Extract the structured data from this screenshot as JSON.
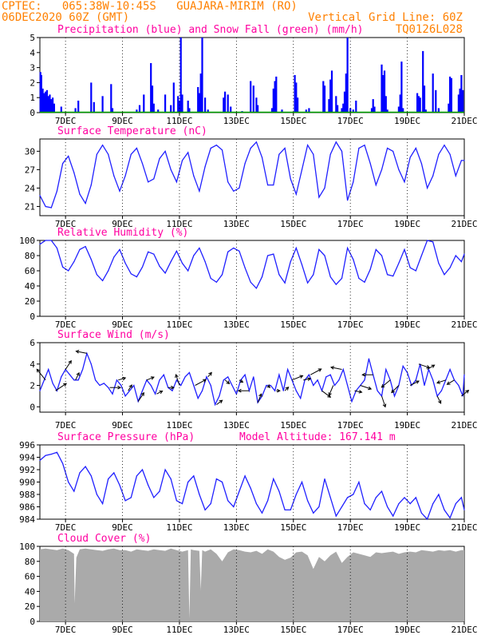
{
  "header": {
    "line1_left": "CPTEC:   065:38W-10:45S   GUAJARA-MIRIM (RO)",
    "line2_left": "06DEC2020 60Z (GMT)",
    "line2_right": "Vertical Grid Line: 60Z",
    "line3_right": "TQ0126L028"
  },
  "colors": {
    "header_text": "#ff8000",
    "panel_title": "#ff00a0",
    "precipitation": "#0000ff",
    "snowfall": "#00a000",
    "series_line": "#2020ff",
    "cloud_fill": "#aaaaaa",
    "grid": "#000000"
  },
  "x_axis": {
    "ticks": [
      "7DEC",
      "9DEC",
      "11DEC",
      "13DEC",
      "15DEC",
      "17DEC",
      "19DEC",
      "21DEC"
    ],
    "tick_days": [
      7,
      9,
      11,
      13,
      15,
      17,
      19,
      21
    ],
    "day_min": 6.1,
    "day_max": 21.0
  },
  "chart_data": [
    {
      "type": "bar",
      "title": "Precipitation (blue) and Snow Fall (green) (mm/h)",
      "ylim": [
        0,
        5
      ],
      "yticks": [
        "0",
        "1",
        "2",
        "3",
        "4",
        "5"
      ],
      "day": [
        6.12,
        6.15,
        6.2,
        6.25,
        6.3,
        6.35,
        6.4,
        6.45,
        6.5,
        6.55,
        6.6,
        6.85,
        7.35,
        7.45,
        7.9,
        8.0,
        8.3,
        8.6,
        8.65,
        9.5,
        9.6,
        9.75,
        10.0,
        10.05,
        10.1,
        10.25,
        10.5,
        10.7,
        10.8,
        10.95,
        11.0,
        11.05,
        11.1,
        11.3,
        11.35,
        11.65,
        11.7,
        11.75,
        11.8,
        11.9,
        12.0,
        12.55,
        12.6,
        12.7,
        12.8,
        13.2,
        13.5,
        13.6,
        13.7,
        13.75,
        14.25,
        14.3,
        14.35,
        14.4,
        14.6,
        15.05,
        15.1,
        15.15,
        15.45,
        15.55,
        16.05,
        16.1,
        16.25,
        16.3,
        16.35,
        16.5,
        16.55,
        16.7,
        16.75,
        16.8,
        16.85,
        16.9,
        17.0,
        17.1,
        17.2,
        17.75,
        17.8,
        17.85,
        18.1,
        18.15,
        18.2,
        18.25,
        18.3,
        18.7,
        18.75,
        18.8,
        18.85,
        19.35,
        19.4,
        19.45,
        19.55,
        19.6,
        19.65,
        19.9,
        20.0,
        20.1,
        20.45,
        20.5,
        20.55,
        20.8,
        20.85,
        20.9,
        20.95
      ],
      "values": [
        2.7,
        2.5,
        1.6,
        1.3,
        1.4,
        1.5,
        1.1,
        1.2,
        0.9,
        1.0,
        0.6,
        0.4,
        0.3,
        0.8,
        2.0,
        0.7,
        1.1,
        1.9,
        0.3,
        0.2,
        0.5,
        1.2,
        3.3,
        1.8,
        0.6,
        0.2,
        1.2,
        0.5,
        2.0,
        1.1,
        0.8,
        5.0,
        1.2,
        0.8,
        0.3,
        1.7,
        1.3,
        2.6,
        5.0,
        1.0,
        0.2,
        1.0,
        1.4,
        1.2,
        0.4,
        0.1,
        2.1,
        1.8,
        1.0,
        0.5,
        0.3,
        1.6,
        2.1,
        2.4,
        0.2,
        2.5,
        2.0,
        1.0,
        0.2,
        0.3,
        2.1,
        1.8,
        0.9,
        2.2,
        2.8,
        1.1,
        0.5,
        0.3,
        0.6,
        1.4,
        2.6,
        5.0,
        0.3,
        0.2,
        0.8,
        0.3,
        0.9,
        0.4,
        3.2,
        2.5,
        2.8,
        1.1,
        0.2,
        0.4,
        1.2,
        3.4,
        0.3,
        1.3,
        1.1,
        1.0,
        4.1,
        1.8,
        0.2,
        2.6,
        1.5,
        0.3,
        0.6,
        2.4,
        2.3,
        1.2,
        1.6,
        2.5,
        1.5
      ],
      "snow_values": 0
    },
    {
      "type": "line",
      "title": "Surface Temperature (nC)",
      "ylim": [
        19.5,
        32
      ],
      "yticks": [
        21,
        24,
        27,
        30
      ],
      "day": [
        6.1,
        6.3,
        6.5,
        6.7,
        6.9,
        7.1,
        7.3,
        7.5,
        7.7,
        7.9,
        8.1,
        8.3,
        8.5,
        8.7,
        8.9,
        9.1,
        9.3,
        9.5,
        9.7,
        9.9,
        10.1,
        10.3,
        10.5,
        10.7,
        10.9,
        11.1,
        11.3,
        11.5,
        11.7,
        11.9,
        12.1,
        12.3,
        12.5,
        12.7,
        12.9,
        13.1,
        13.3,
        13.5,
        13.7,
        13.9,
        14.1,
        14.3,
        14.5,
        14.7,
        14.9,
        15.1,
        15.3,
        15.5,
        15.7,
        15.9,
        16.1,
        16.3,
        16.5,
        16.7,
        16.9,
        17.1,
        17.3,
        17.5,
        17.7,
        17.9,
        18.1,
        18.3,
        18.5,
        18.7,
        18.9,
        19.1,
        19.3,
        19.5,
        19.7,
        19.9,
        20.1,
        20.3,
        20.5,
        20.7,
        20.9,
        21.0
      ],
      "values": [
        22.8,
        21.0,
        20.8,
        23.5,
        28.0,
        29.2,
        26.5,
        23.0,
        21.5,
        24.5,
        29.5,
        31.0,
        29.5,
        26.0,
        23.5,
        26.0,
        29.5,
        30.5,
        28.0,
        25.0,
        25.5,
        28.8,
        30.0,
        27.0,
        25.0,
        28.5,
        29.8,
        26.0,
        23.5,
        27.5,
        30.5,
        31.0,
        30.2,
        25.0,
        23.5,
        24.0,
        28.0,
        30.5,
        31.5,
        29.0,
        24.5,
        24.5,
        29.5,
        30.5,
        25.5,
        23.0,
        27.0,
        31.0,
        29.5,
        22.5,
        24.0,
        29.5,
        31.5,
        30.0,
        22.0,
        25.0,
        30.5,
        31.0,
        28.0,
        24.5,
        27.0,
        30.5,
        30.0,
        27.0,
        25.0,
        29.0,
        30.5,
        28.0,
        24.0,
        26.0,
        29.5,
        31.0,
        29.5,
        26.0,
        28.5,
        28.5
      ]
    },
    {
      "type": "line",
      "title": "Relative Humidity (%)",
      "ylim": [
        0,
        100
      ],
      "yticks": [
        0,
        20,
        40,
        60,
        80,
        100
      ],
      "day": [
        6.1,
        6.3,
        6.5,
        6.7,
        6.9,
        7.1,
        7.3,
        7.5,
        7.7,
        7.9,
        8.1,
        8.3,
        8.5,
        8.7,
        8.9,
        9.1,
        9.3,
        9.5,
        9.7,
        9.9,
        10.1,
        10.3,
        10.5,
        10.7,
        10.9,
        11.1,
        11.3,
        11.5,
        11.7,
        11.9,
        12.1,
        12.3,
        12.5,
        12.7,
        12.9,
        13.1,
        13.3,
        13.5,
        13.7,
        13.9,
        14.1,
        14.3,
        14.5,
        14.7,
        14.9,
        15.1,
        15.3,
        15.5,
        15.7,
        15.9,
        16.1,
        16.3,
        16.5,
        16.7,
        16.9,
        17.1,
        17.3,
        17.5,
        17.7,
        17.9,
        18.1,
        18.3,
        18.5,
        18.7,
        18.9,
        19.1,
        19.3,
        19.5,
        19.7,
        19.9,
        20.1,
        20.3,
        20.5,
        20.7,
        20.9,
        21.0
      ],
      "values": [
        95,
        100,
        100,
        90,
        65,
        60,
        72,
        88,
        92,
        75,
        55,
        47,
        60,
        78,
        88,
        70,
        56,
        52,
        65,
        85,
        82,
        66,
        57,
        72,
        86,
        70,
        60,
        80,
        90,
        72,
        50,
        45,
        55,
        85,
        90,
        86,
        64,
        45,
        37,
        52,
        80,
        82,
        55,
        44,
        72,
        90,
        68,
        44,
        55,
        88,
        80,
        52,
        42,
        50,
        90,
        75,
        50,
        45,
        62,
        88,
        80,
        55,
        53,
        70,
        88,
        64,
        60,
        80,
        100,
        98,
        70,
        55,
        64,
        80,
        72,
        82
      ]
    },
    {
      "type": "line",
      "title": "Surface Wind (m/s)",
      "ylim": [
        -0.5,
        6
      ],
      "yticks": [
        0,
        2,
        4,
        6
      ],
      "day": [
        6.1,
        6.25,
        6.4,
        6.55,
        6.7,
        6.85,
        7.0,
        7.15,
        7.3,
        7.45,
        7.6,
        7.75,
        7.9,
        8.05,
        8.2,
        8.35,
        8.5,
        8.65,
        8.8,
        8.95,
        9.1,
        9.25,
        9.4,
        9.55,
        9.7,
        9.85,
        10.0,
        10.15,
        10.3,
        10.45,
        10.6,
        10.75,
        10.9,
        11.05,
        11.2,
        11.35,
        11.5,
        11.65,
        11.8,
        11.95,
        12.1,
        12.25,
        12.4,
        12.55,
        12.7,
        12.85,
        13.0,
        13.15,
        13.3,
        13.45,
        13.6,
        13.75,
        13.9,
        14.05,
        14.2,
        14.35,
        14.5,
        14.65,
        14.8,
        14.95,
        15.1,
        15.25,
        15.4,
        15.55,
        15.7,
        15.85,
        16.0,
        16.15,
        16.3,
        16.45,
        16.6,
        16.75,
        16.9,
        17.05,
        17.2,
        17.35,
        17.5,
        17.65,
        17.8,
        17.95,
        18.1,
        18.25,
        18.4,
        18.55,
        18.7,
        18.85,
        19.0,
        19.15,
        19.3,
        19.45,
        19.6,
        19.75,
        19.9,
        20.05,
        20.2,
        20.35,
        20.5,
        20.65,
        20.8,
        20.95,
        21.0
      ],
      "values": [
        1.5,
        2.5,
        3.5,
        2.2,
        1.5,
        2.8,
        3.5,
        3.0,
        2.5,
        2.5,
        3.5,
        5.0,
        4.0,
        2.5,
        2.0,
        2.2,
        1.8,
        1.2,
        2.5,
        2.0,
        1.0,
        1.5,
        2.0,
        0.5,
        1.5,
        2.5,
        2.0,
        1.2,
        2.5,
        3.0,
        1.8,
        1.5,
        2.5,
        2.0,
        2.8,
        3.2,
        2.0,
        0.8,
        1.5,
        2.8,
        2.0,
        0.2,
        1.0,
        2.5,
        2.8,
        2.0,
        1.2,
        2.5,
        3.0,
        1.5,
        2.8,
        0.4,
        1.0,
        2.0,
        2.0,
        1.5,
        3.0,
        1.5,
        3.5,
        2.5,
        1.5,
        0.8,
        2.5,
        3.0,
        2.0,
        2.5,
        1.5,
        2.8,
        3.0,
        2.0,
        2.5,
        3.5,
        2.0,
        0.5,
        1.5,
        2.0,
        2.5,
        4.5,
        3.0,
        1.5,
        1.0,
        3.5,
        2.5,
        1.0,
        2.0,
        3.8,
        3.2,
        2.0,
        2.5,
        4.0,
        2.0,
        3.5,
        2.5,
        1.0,
        1.5,
        2.5,
        3.5,
        2.5,
        2.0,
        1.0,
        3.0
      ],
      "arrows_day": [
        6.3,
        6.65,
        7.0,
        7.35,
        7.75,
        8.55,
        8.85,
        9.2,
        9.55,
        9.85,
        10.2,
        10.6,
        11.0,
        11.55,
        12.0,
        12.3,
        12.6,
        13.1,
        13.45,
        13.75,
        14.1,
        14.4,
        14.7,
        14.95,
        15.35,
        15.6,
        16.0,
        16.4,
        16.7,
        17.15,
        17.35,
        17.8,
        18.1,
        18.4,
        18.7,
        19.1,
        19.4,
        19.7,
        20.05,
        20.35,
        20.65,
        20.9
      ],
      "arrows_u": [
        -1.2,
        1.5,
        0.8,
        0.5,
        -1.5,
        1.5,
        1.0,
        0.5,
        0.8,
        1.0,
        0.8,
        0.8,
        -0.5,
        1.5,
        0.5,
        0.8,
        0.6,
        0.5,
        -1.5,
        0.5,
        0.3,
        0.5,
        0.5,
        1.5,
        1.0,
        1.5,
        1.2,
        -0.6,
        -1.5,
        1.0,
        1.5,
        -1.5,
        0.5,
        -1.2,
        -1.0,
        1.2,
        1.5,
        1.0,
        0.5,
        -1.2,
        -1.0,
        1.0
      ],
      "arrows_v": [
        1.5,
        1.0,
        1.2,
        1.0,
        0.3,
        0.0,
        0.3,
        0.8,
        1.2,
        0.4,
        0.4,
        0.0,
        1.5,
        0.8,
        0.6,
        0.6,
        -0.5,
        -0.3,
        0.0,
        1.2,
        -0.3,
        0.0,
        0.5,
        0.6,
        0.2,
        0.8,
        -0.9,
        -1.4,
        0.3,
        -0.2,
        -0.5,
        0.0,
        -1.5,
        -1.0,
        -1.0,
        0.6,
        -0.5,
        0.6,
        -1.0,
        -0.4,
        -0.6,
        0.8
      ]
    },
    {
      "type": "line",
      "title": "Surface Pressure (hPa)",
      "annotation": "Model Altitude: 167.141 m",
      "ylim": [
        984,
        996
      ],
      "yticks": [
        984,
        986,
        988,
        990,
        992,
        994,
        996
      ],
      "day": [
        6.1,
        6.3,
        6.5,
        6.7,
        6.9,
        7.1,
        7.3,
        7.5,
        7.7,
        7.9,
        8.1,
        8.3,
        8.5,
        8.7,
        8.9,
        9.1,
        9.3,
        9.5,
        9.7,
        9.9,
        10.1,
        10.3,
        10.5,
        10.7,
        10.9,
        11.1,
        11.3,
        11.5,
        11.7,
        11.9,
        12.1,
        12.3,
        12.5,
        12.7,
        12.9,
        13.1,
        13.3,
        13.5,
        13.7,
        13.9,
        14.1,
        14.3,
        14.5,
        14.7,
        14.9,
        15.1,
        15.3,
        15.5,
        15.7,
        15.9,
        16.1,
        16.3,
        16.5,
        16.7,
        16.9,
        17.1,
        17.3,
        17.5,
        17.7,
        17.9,
        18.1,
        18.3,
        18.5,
        18.7,
        18.9,
        19.1,
        19.3,
        19.5,
        19.7,
        19.9,
        20.1,
        20.3,
        20.5,
        20.7,
        20.9,
        21.0
      ],
      "values": [
        993.5,
        994.3,
        994.5,
        994.8,
        993.0,
        990.0,
        988.5,
        991.5,
        992.5,
        991.0,
        988.0,
        986.5,
        990.5,
        991.5,
        989.5,
        987.0,
        987.5,
        991.0,
        992.0,
        989.5,
        987.5,
        988.5,
        992.0,
        990.5,
        987.0,
        986.5,
        990.0,
        991.0,
        988.0,
        985.5,
        986.5,
        990.5,
        990.0,
        987.0,
        986.0,
        988.5,
        991.0,
        989.0,
        986.5,
        985.0,
        987.0,
        990.5,
        988.5,
        985.5,
        985.5,
        988.0,
        990.0,
        987.0,
        985.0,
        986.0,
        990.5,
        987.5,
        984.5,
        986.0,
        987.5,
        988.0,
        990.0,
        986.5,
        985.5,
        987.5,
        988.5,
        986.0,
        984.5,
        986.5,
        987.5,
        986.5,
        987.5,
        985.0,
        984.0,
        986.5,
        988.0,
        985.5,
        984.2,
        986.5,
        987.5,
        985.5
      ]
    },
    {
      "type": "area",
      "title": "Cloud Cover (%)",
      "ylim": [
        0,
        100
      ],
      "yticks": [
        0,
        20,
        40,
        60,
        80,
        100
      ],
      "day": [
        6.1,
        6.3,
        6.5,
        6.7,
        6.9,
        7.1,
        7.3,
        7.32,
        7.38,
        7.5,
        7.7,
        7.9,
        8.1,
        8.3,
        8.5,
        8.7,
        8.9,
        9.1,
        9.3,
        9.5,
        9.7,
        9.9,
        10.1,
        10.3,
        10.5,
        10.7,
        10.9,
        11.1,
        11.3,
        11.35,
        11.4,
        11.5,
        11.7,
        11.75,
        11.8,
        11.9,
        12.1,
        12.3,
        12.5,
        12.7,
        12.9,
        13.1,
        13.3,
        13.5,
        13.7,
        13.9,
        14.1,
        14.3,
        14.5,
        14.7,
        14.9,
        15.1,
        15.3,
        15.5,
        15.7,
        15.9,
        16.1,
        16.3,
        16.5,
        16.7,
        16.9,
        17.1,
        17.3,
        17.5,
        17.7,
        17.9,
        18.1,
        18.3,
        18.5,
        18.7,
        18.9,
        19.1,
        19.3,
        19.5,
        19.7,
        19.9,
        20.1,
        20.3,
        20.5,
        20.7,
        20.9,
        21.0
      ],
      "values": [
        96,
        97,
        96,
        95,
        97,
        95,
        90,
        24,
        85,
        96,
        97,
        96,
        95,
        94,
        96,
        97,
        95,
        95,
        93,
        96,
        95,
        94,
        96,
        95,
        94,
        97,
        95,
        93,
        95,
        4,
        96,
        95,
        94,
        42,
        95,
        93,
        96,
        90,
        80,
        92,
        96,
        95,
        93,
        92,
        94,
        90,
        96,
        93,
        86,
        82,
        85,
        92,
        93,
        88,
        70,
        86,
        80,
        88,
        93,
        78,
        86,
        92,
        90,
        88,
        86,
        92,
        91,
        92,
        93,
        90,
        92,
        93,
        92,
        95,
        94,
        93,
        95,
        94,
        95,
        93,
        95,
        95
      ]
    }
  ]
}
